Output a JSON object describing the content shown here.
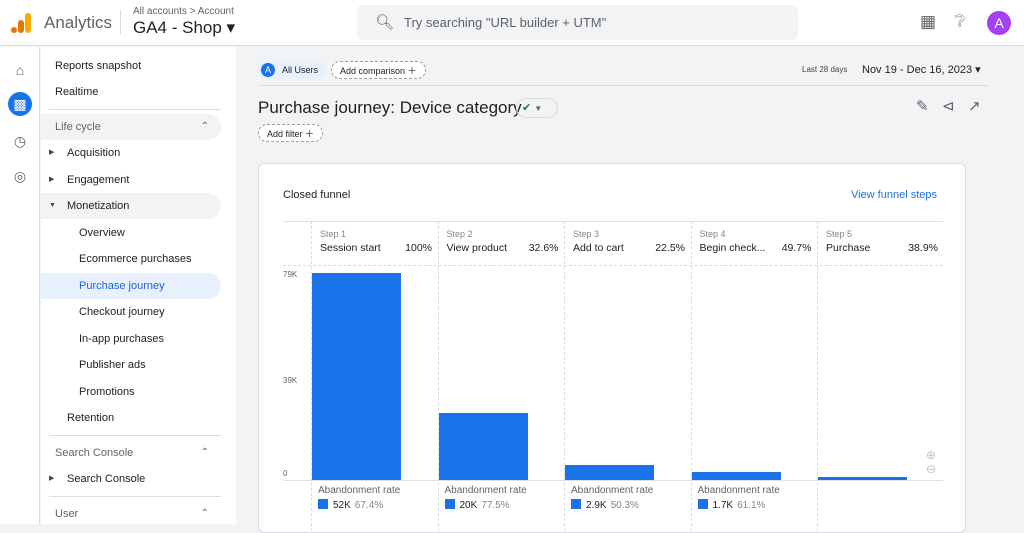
{
  "header": {
    "app_name": "Analytics",
    "breadcrumb": "All accounts > Account",
    "property": "GA4 - Shop ▾",
    "search_placeholder": "Try searching \"URL builder + UTM\"",
    "avatar_letter": "A"
  },
  "rail": {
    "icons": [
      "home-icon",
      "reports-icon",
      "explore-icon",
      "advertising-icon"
    ]
  },
  "sidebar": {
    "top": [
      "Reports snapshot",
      "Realtime"
    ],
    "lifecycle": {
      "label": "Life cycle",
      "items": [
        "Acquisition",
        "Engagement",
        "Monetization"
      ]
    },
    "monetization": [
      "Overview",
      "Ecommerce purchases",
      "Purchase journey",
      "Checkout journey",
      "In-app purchases",
      "Publisher ads",
      "Promotions"
    ],
    "retention": "Retention",
    "search_console": {
      "label": "Search Console",
      "item": "Search Console"
    },
    "user": {
      "label": "User"
    }
  },
  "toolbar": {
    "segment_letter": "A",
    "segment": "All Users",
    "add_comparison": "Add comparison ＋",
    "date_label": "Last 28 days",
    "date_range": "Nov 19 - Dec 16, 2023 ▾",
    "add_filter": "Add filter ＋"
  },
  "page": {
    "title": "Purchase journey: Device category"
  },
  "card": {
    "funnel_type": "Closed funnel",
    "view_steps": "View funnel steps",
    "abandon_label": "Abandonment rate"
  },
  "chart_data": {
    "type": "bar",
    "y_ticks": [
      "79K",
      "39K",
      "0"
    ],
    "ylim": [
      0,
      79000
    ],
    "steps": [
      {
        "step": "Step 1",
        "label": "Session start",
        "pct": "100%",
        "value": 77000,
        "abandon": "52K",
        "abandon_pct": "67.4%"
      },
      {
        "step": "Step 2",
        "label": "View product",
        "pct": "32.6%",
        "value": 25100,
        "abandon": "20K",
        "abandon_pct": "77.5%"
      },
      {
        "step": "Step 3",
        "label": "Add to cart",
        "pct": "22.5%",
        "value": 5600,
        "abandon": "2.9K",
        "abandon_pct": "50.3%"
      },
      {
        "step": "Step 4",
        "label": "Begin check...",
        "pct": "49.7%",
        "value": 2800,
        "abandon": "1.7K",
        "abandon_pct": "61.1%"
      },
      {
        "step": "Step 5",
        "label": "Purchase",
        "pct": "38.9%",
        "value": 1100
      }
    ],
    "bar_color": "#1a73e8"
  }
}
